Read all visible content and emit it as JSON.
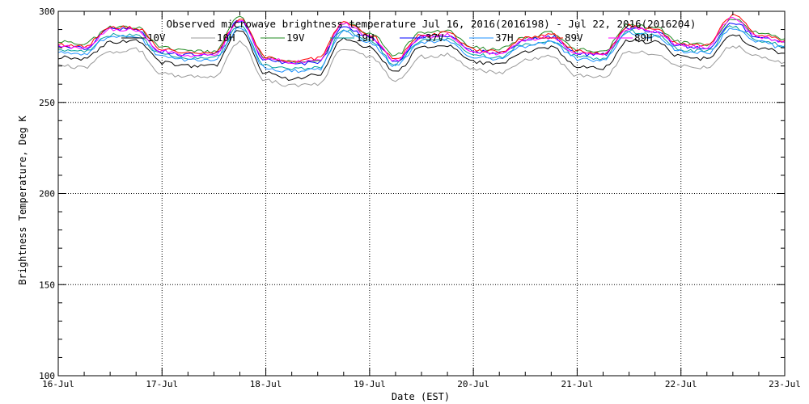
{
  "chart_data": {
    "type": "line",
    "title": "Observed microwave brightness temperature Jul 16, 2016(2016198) - Jul 22, 2016(2016204)",
    "xlabel": "Date (EST)",
    "ylabel": "Brightness Temperature, Deg K",
    "ylim": [
      100,
      300
    ],
    "yticks": [
      100,
      150,
      200,
      250,
      300
    ],
    "xlim": [
      0,
      7
    ],
    "xticks": [
      0,
      1,
      2,
      3,
      4,
      5,
      6,
      7
    ],
    "xtick_labels": [
      "16-Jul",
      "17-Jul",
      "18-Jul",
      "19-Jul",
      "20-Jul",
      "21-Jul",
      "22-Jul",
      "23-Jul"
    ],
    "grid": true,
    "legend_position": "top",
    "x": [
      0,
      0.25,
      0.5,
      0.75,
      1.0,
      1.25,
      1.5,
      1.75,
      2.0,
      2.25,
      2.5,
      2.75,
      3.0,
      3.25,
      3.5,
      3.75,
      4.0,
      4.25,
      4.5,
      4.75,
      5.0,
      5.25,
      5.5,
      5.75,
      6.0,
      6.25,
      6.5,
      6.75,
      7.0
    ],
    "series": [
      {
        "name": "10V",
        "color": "#000000",
        "values": [
          275,
          274,
          283,
          284,
          272,
          270,
          270,
          290,
          266,
          263,
          265,
          285,
          280,
          267,
          280,
          281,
          272,
          271,
          278,
          280,
          270,
          269,
          284,
          283,
          275,
          274,
          287,
          280,
          277
        ]
      },
      {
        "name": "10H",
        "color": "#999999",
        "values": [
          270,
          269,
          278,
          279,
          266,
          264,
          264,
          283,
          262,
          259,
          260,
          280,
          275,
          262,
          275,
          276,
          268,
          266,
          273,
          275,
          265,
          264,
          278,
          277,
          270,
          269,
          281,
          275,
          272
        ]
      },
      {
        "name": "19V",
        "color": "#228B22",
        "values": [
          283,
          282,
          291,
          291,
          280,
          278,
          278,
          297,
          274,
          272,
          273,
          294,
          288,
          276,
          288,
          289,
          280,
          279,
          286,
          288,
          279,
          278,
          293,
          291,
          283,
          282,
          296,
          288,
          285
        ]
      },
      {
        "name": "19H",
        "color": "#00A0A0",
        "values": [
          279,
          278,
          287,
          287,
          276,
          274,
          274,
          292,
          270,
          268,
          269,
          290,
          284,
          271,
          284,
          285,
          276,
          275,
          282,
          284,
          275,
          274,
          289,
          287,
          279,
          278,
          292,
          284,
          281
        ]
      },
      {
        "name": "37V",
        "color": "#0000FF",
        "values": [
          281,
          280,
          290,
          290,
          278,
          276,
          276,
          295,
          273,
          271,
          272,
          292,
          286,
          273,
          286,
          287,
          278,
          277,
          284,
          286,
          277,
          276,
          291,
          289,
          281,
          280,
          294,
          286,
          283
        ]
      },
      {
        "name": "37H",
        "color": "#1E90FF",
        "values": [
          278,
          277,
          286,
          286,
          275,
          273,
          273,
          291,
          269,
          267,
          268,
          289,
          283,
          270,
          283,
          284,
          275,
          274,
          281,
          283,
          274,
          273,
          288,
          286,
          278,
          277,
          291,
          283,
          280
        ]
      },
      {
        "name": "89V",
        "color": "#FF0000",
        "values": [
          282,
          281,
          291,
          291,
          279,
          277,
          277,
          296,
          275,
          273,
          274,
          294,
          287,
          274,
          287,
          288,
          279,
          278,
          285,
          287,
          278,
          277,
          292,
          290,
          282,
          281,
          298,
          287,
          284
        ]
      },
      {
        "name": "89H",
        "color": "#FF00FF",
        "values": [
          281,
          280,
          290,
          290,
          278,
          276,
          276,
          295,
          274,
          272,
          273,
          293,
          286,
          273,
          286,
          287,
          278,
          277,
          284,
          286,
          277,
          276,
          291,
          289,
          281,
          280,
          297,
          286,
          283
        ]
      }
    ],
    "legend_labels": [
      "10V",
      "10H",
      "19V",
      "19H",
      "37V",
      "37H",
      "89V",
      "89H"
    ]
  }
}
